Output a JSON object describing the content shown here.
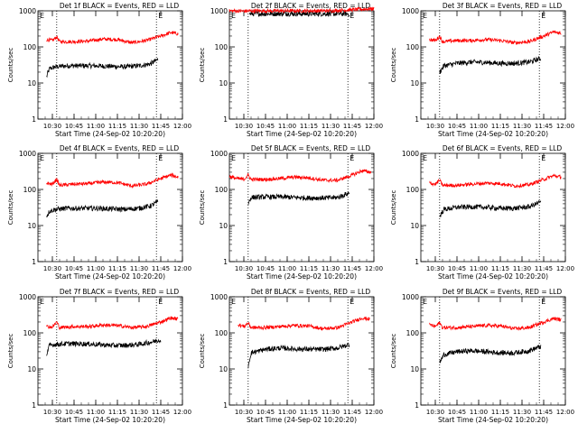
{
  "common": {
    "ylabel": "Counts/sec",
    "xlabel": "Start Time (24-Sep-02 10:20:20)",
    "y_ticks": [
      "1",
      "10",
      "100",
      "1000"
    ],
    "x_ticks": [
      "10:30",
      "10:45",
      "11:00",
      "11:15",
      "11:30",
      "11:45",
      "12:00"
    ],
    "line_colors": {
      "events": "#000000",
      "lld": "#ff0000"
    }
  },
  "chart_data": [
    {
      "type": "line",
      "title": "Det 1f BLACK = Events, RED = LLD",
      "xlim": [
        "10:20",
        "12:00"
      ],
      "ylim": [
        1,
        1000
      ],
      "yscale": "log",
      "x_ticks": [
        "10:30",
        "10:45",
        "11:00",
        "11:15",
        "11:30",
        "11:45",
        "12:00"
      ],
      "markers": [
        "10:33",
        "11:42"
      ],
      "marker_label": "E",
      "series": [
        {
          "role": "events",
          "x": [
            "10:26",
            "10:28",
            "10:32",
            "10:40",
            "10:50",
            "11:00",
            "11:10",
            "11:20",
            "11:30",
            "11:38",
            "11:43"
          ],
          "y": [
            15,
            25,
            28,
            30,
            30,
            30,
            29,
            28,
            30,
            34,
            45
          ]
        },
        {
          "role": "lld",
          "x": [
            "10:26",
            "10:30",
            "10:33",
            "10:35",
            "10:45",
            "10:55",
            "11:05",
            "11:15",
            "11:25",
            "11:35",
            "11:45",
            "11:52",
            "11:57"
          ],
          "y": [
            160,
            150,
            190,
            140,
            140,
            145,
            165,
            160,
            130,
            150,
            200,
            250,
            230
          ]
        }
      ]
    },
    {
      "type": "line",
      "title": "Det 2f BLACK = Events, RED = LLD",
      "xlim": [
        "10:20",
        "12:00"
      ],
      "ylim": [
        1,
        1000
      ],
      "yscale": "log",
      "x_ticks": [
        "10:30",
        "10:45",
        "11:00",
        "11:15",
        "11:30",
        "11:45",
        "12:00"
      ],
      "markers": [
        "10:33",
        "11:42"
      ],
      "marker_label": "E",
      "series": [
        {
          "role": "events",
          "x": [
            "10:34",
            "10:40",
            "10:50",
            "11:00",
            "11:10",
            "11:20",
            "11:30",
            "11:40",
            "11:43"
          ],
          "y": [
            820,
            830,
            830,
            830,
            830,
            830,
            830,
            830,
            820
          ]
        },
        {
          "role": "lld",
          "x": [
            "10:20",
            "10:30",
            "10:40",
            "10:50",
            "11:00",
            "11:10",
            "11:20",
            "11:30",
            "11:40",
            "11:50",
            "12:00"
          ],
          "y": [
            1000,
            980,
            1000,
            990,
            1000,
            1000,
            1000,
            1000,
            1050,
            1100,
            1150
          ]
        }
      ]
    },
    {
      "type": "line",
      "title": "Det 3f BLACK = Events, RED = LLD",
      "xlim": [
        "10:20",
        "12:00"
      ],
      "ylim": [
        1,
        1000
      ],
      "yscale": "log",
      "x_ticks": [
        "10:30",
        "10:45",
        "11:00",
        "11:15",
        "11:30",
        "11:45",
        "12:00"
      ],
      "markers": [
        "10:33",
        "11:42"
      ],
      "marker_label": "E",
      "series": [
        {
          "role": "events",
          "x": [
            "10:33",
            "10:36",
            "10:45",
            "10:55",
            "11:05",
            "11:15",
            "11:25",
            "11:35",
            "11:43"
          ],
          "y": [
            20,
            30,
            35,
            38,
            37,
            35,
            35,
            38,
            48
          ]
        },
        {
          "role": "lld",
          "x": [
            "10:26",
            "10:30",
            "10:33",
            "10:35",
            "10:45",
            "10:55",
            "11:05",
            "11:15",
            "11:25",
            "11:35",
            "11:45",
            "11:52",
            "11:57"
          ],
          "y": [
            160,
            150,
            195,
            140,
            150,
            150,
            160,
            150,
            130,
            140,
            200,
            260,
            240
          ]
        }
      ]
    },
    {
      "type": "line",
      "title": "Det 4f BLACK = Events, RED = LLD",
      "xlim": [
        "10:20",
        "12:00"
      ],
      "ylim": [
        1,
        1000
      ],
      "yscale": "log",
      "x_ticks": [
        "10:30",
        "10:45",
        "11:00",
        "11:15",
        "11:30",
        "11:45",
        "12:00"
      ],
      "markers": [
        "10:33",
        "11:42"
      ],
      "marker_label": "E",
      "series": [
        {
          "role": "events",
          "x": [
            "10:26",
            "10:28",
            "10:32",
            "10:40",
            "10:50",
            "11:00",
            "11:10",
            "11:20",
            "11:30",
            "11:38",
            "11:43"
          ],
          "y": [
            18,
            25,
            28,
            30,
            30,
            30,
            29,
            28,
            30,
            35,
            45
          ]
        },
        {
          "role": "lld",
          "x": [
            "10:26",
            "10:30",
            "10:33",
            "10:35",
            "10:45",
            "10:55",
            "11:05",
            "11:15",
            "11:25",
            "11:35",
            "11:45",
            "11:52",
            "11:57"
          ],
          "y": [
            150,
            140,
            190,
            130,
            140,
            145,
            160,
            155,
            125,
            140,
            200,
            250,
            220
          ]
        }
      ]
    },
    {
      "type": "line",
      "title": "Det 5f BLACK = Events, RED = LLD",
      "xlim": [
        "10:20",
        "12:00"
      ],
      "ylim": [
        1,
        1000
      ],
      "yscale": "log",
      "x_ticks": [
        "10:30",
        "10:45",
        "11:00",
        "11:15",
        "11:30",
        "11:45",
        "12:00"
      ],
      "markers": [
        "10:33",
        "11:42"
      ],
      "marker_label": "E",
      "series": [
        {
          "role": "events",
          "x": [
            "10:33",
            "10:35",
            "10:45",
            "10:55",
            "11:05",
            "11:15",
            "11:25",
            "11:35",
            "11:43"
          ],
          "y": [
            40,
            60,
            62,
            62,
            60,
            58,
            58,
            60,
            80
          ]
        },
        {
          "role": "lld",
          "x": [
            "10:20",
            "10:25",
            "10:30",
            "10:33",
            "10:35",
            "10:45",
            "10:55",
            "11:05",
            "11:15",
            "11:25",
            "11:35",
            "11:45",
            "11:52",
            "11:58"
          ],
          "y": [
            230,
            200,
            190,
            250,
            190,
            190,
            200,
            220,
            210,
            180,
            180,
            250,
            330,
            300
          ]
        }
      ]
    },
    {
      "type": "line",
      "title": "Det 6f BLACK = Events, RED = LLD",
      "xlim": [
        "10:20",
        "12:00"
      ],
      "ylim": [
        1,
        1000
      ],
      "yscale": "log",
      "x_ticks": [
        "10:30",
        "10:45",
        "11:00",
        "11:15",
        "11:30",
        "11:45",
        "12:00"
      ],
      "markers": [
        "10:33",
        "11:42"
      ],
      "marker_label": "E",
      "series": [
        {
          "role": "events",
          "x": [
            "10:33",
            "10:36",
            "10:45",
            "10:55",
            "11:05",
            "11:15",
            "11:25",
            "11:35",
            "11:43"
          ],
          "y": [
            18,
            28,
            32,
            33,
            32,
            30,
            30,
            33,
            45
          ]
        },
        {
          "role": "lld",
          "x": [
            "10:26",
            "10:30",
            "10:33",
            "10:35",
            "10:45",
            "10:55",
            "11:05",
            "11:15",
            "11:25",
            "11:35",
            "11:45",
            "11:52",
            "11:57"
          ],
          "y": [
            150,
            140,
            180,
            130,
            130,
            140,
            150,
            145,
            125,
            135,
            190,
            240,
            220
          ]
        }
      ]
    },
    {
      "type": "line",
      "title": "Det 7f BLACK = Events, RED = LLD",
      "xlim": [
        "10:20",
        "12:00"
      ],
      "ylim": [
        1,
        1000
      ],
      "yscale": "log",
      "x_ticks": [
        "10:30",
        "10:45",
        "11:00",
        "11:15",
        "11:30",
        "11:45",
        "12:00"
      ],
      "markers": [
        "10:33",
        "11:42"
      ],
      "marker_label": "E",
      "series": [
        {
          "role": "events",
          "x": [
            "10:26",
            "10:28",
            "10:32",
            "10:40",
            "10:50",
            "11:00",
            "11:10",
            "11:20",
            "11:30",
            "11:38",
            "11:45"
          ],
          "y": [
            25,
            45,
            48,
            50,
            50,
            48,
            45,
            45,
            48,
            55,
            65
          ]
        },
        {
          "role": "lld",
          "x": [
            "10:26",
            "10:30",
            "10:33",
            "10:35",
            "10:45",
            "10:55",
            "11:05",
            "11:15",
            "11:25",
            "11:35",
            "11:45",
            "11:52",
            "11:57"
          ],
          "y": [
            150,
            145,
            200,
            140,
            150,
            150,
            165,
            160,
            140,
            150,
            200,
            260,
            240
          ]
        }
      ]
    },
    {
      "type": "line",
      "title": "Det 8f BLACK = Events, RED = LLD",
      "xlim": [
        "10:20",
        "12:00"
      ],
      "ylim": [
        1,
        1000
      ],
      "yscale": "log",
      "x_ticks": [
        "10:30",
        "10:45",
        "11:00",
        "11:15",
        "11:30",
        "11:45",
        "12:00"
      ],
      "markers": [
        "10:33",
        "11:42"
      ],
      "marker_label": "E",
      "series": [
        {
          "role": "events",
          "x": [
            "10:33",
            "10:35",
            "10:45",
            "10:55",
            "11:05",
            "11:15",
            "11:25",
            "11:35",
            "11:43"
          ],
          "y": [
            12,
            28,
            35,
            38,
            36,
            35,
            35,
            38,
            48
          ]
        },
        {
          "role": "lld",
          "x": [
            "10:26",
            "10:30",
            "10:33",
            "10:35",
            "10:45",
            "10:55",
            "11:05",
            "11:15",
            "11:25",
            "11:35",
            "11:45",
            "11:52",
            "11:57"
          ],
          "y": [
            170,
            150,
            190,
            140,
            140,
            150,
            160,
            155,
            130,
            140,
            200,
            260,
            240
          ]
        }
      ]
    },
    {
      "type": "line",
      "title": "Det 9f BLACK = Events, RED = LLD",
      "xlim": [
        "10:20",
        "12:00"
      ],
      "ylim": [
        1,
        1000
      ],
      "yscale": "log",
      "x_ticks": [
        "10:30",
        "10:45",
        "11:00",
        "11:15",
        "11:30",
        "11:45",
        "12:00"
      ],
      "markers": [
        "10:33",
        "11:42"
      ],
      "marker_label": "E",
      "series": [
        {
          "role": "events",
          "x": [
            "10:33",
            "10:36",
            "10:45",
            "10:55",
            "11:05",
            "11:15",
            "11:25",
            "11:35",
            "11:43"
          ],
          "y": [
            15,
            25,
            30,
            32,
            30,
            28,
            28,
            32,
            42
          ]
        },
        {
          "role": "lld",
          "x": [
            "10:26",
            "10:30",
            "10:33",
            "10:35",
            "10:45",
            "10:55",
            "11:05",
            "11:15",
            "11:25",
            "11:35",
            "11:45",
            "11:52",
            "11:57"
          ],
          "y": [
            170,
            150,
            190,
            140,
            140,
            150,
            160,
            155,
            130,
            140,
            200,
            250,
            230
          ]
        }
      ]
    }
  ]
}
